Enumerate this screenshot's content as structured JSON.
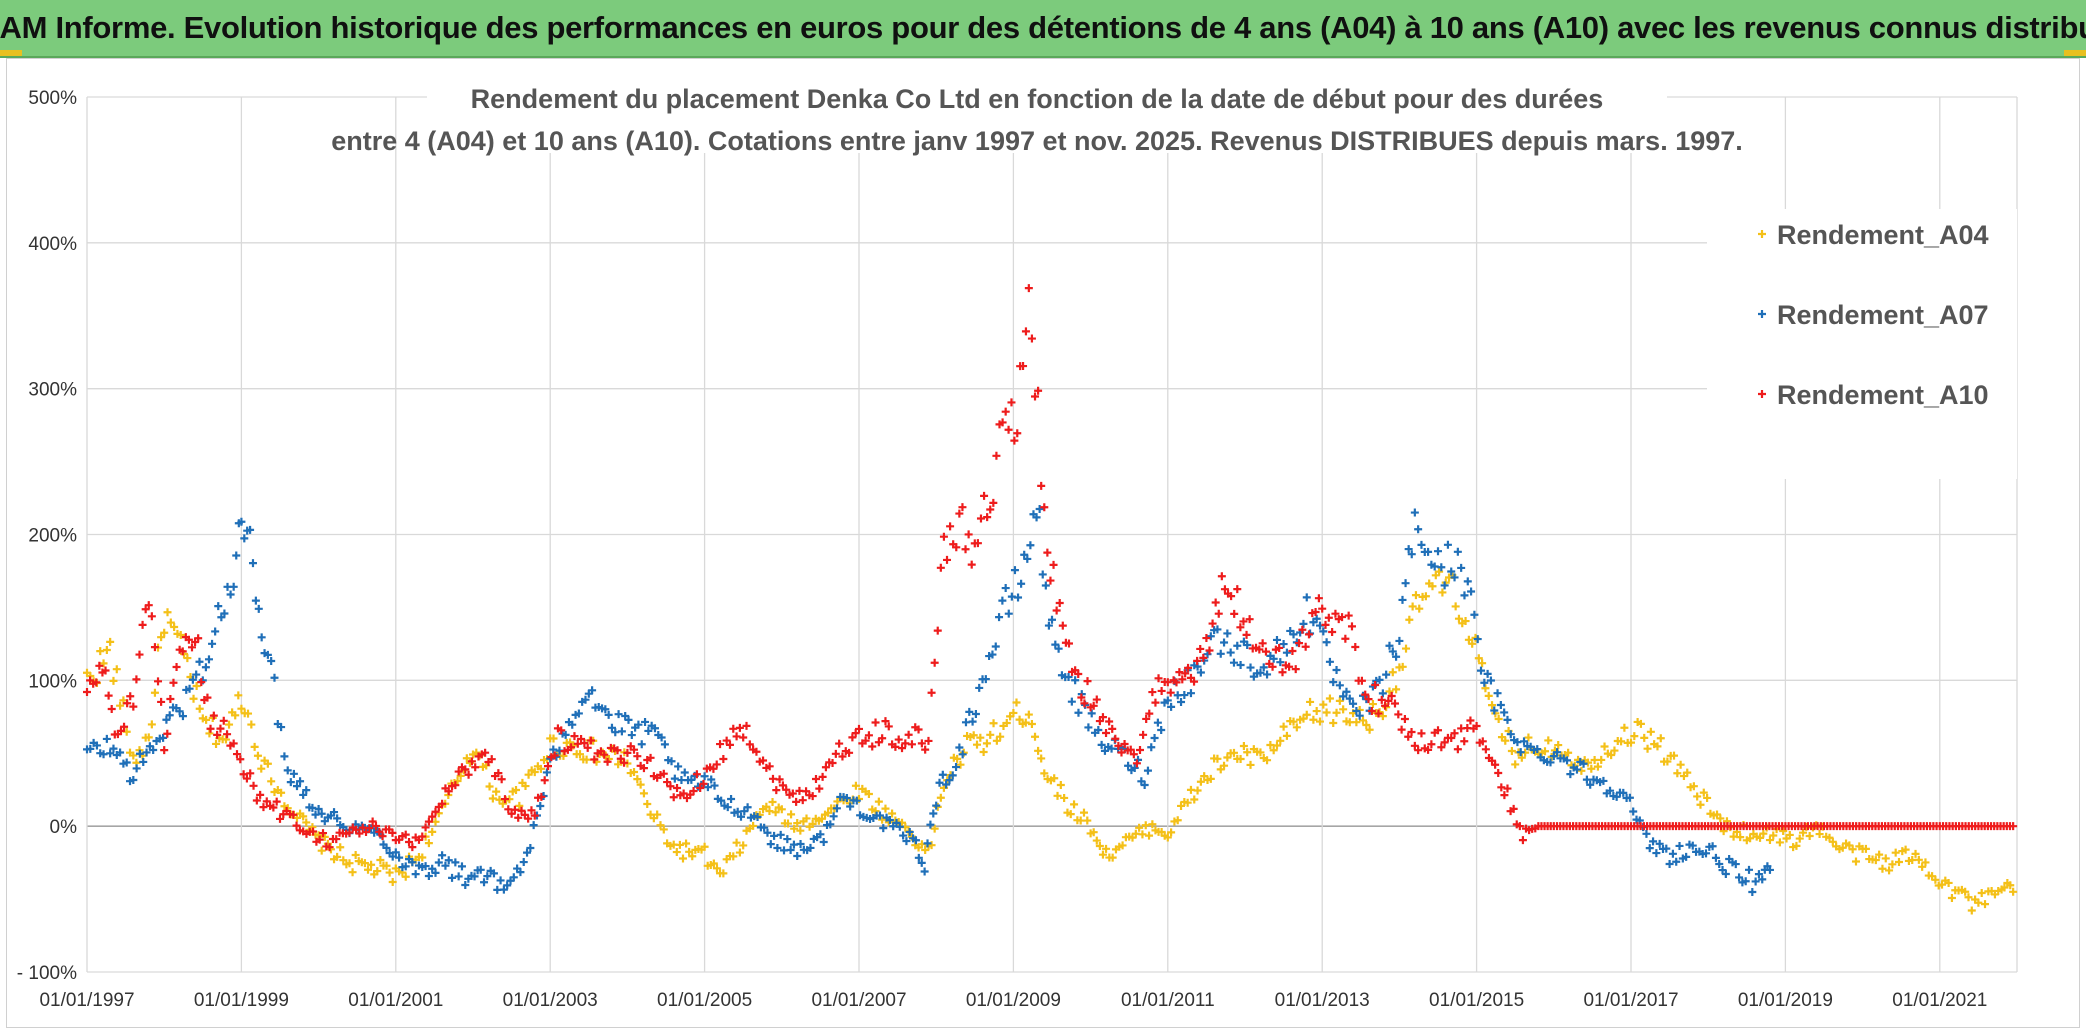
{
  "banner": {
    "title": "ADAM Informe. Evolution historique des performances en euros pour des détentions de 4 ans (A04) à 10 ans (A10) avec les revenus connus distribués"
  },
  "colors": {
    "banner_bg": "#7ccb7c",
    "A04": "#f4c018",
    "A07": "#1f6fb8",
    "A10": "#ee1c1c",
    "grid": "#d9d9d9"
  },
  "chart_data": {
    "type": "scatter",
    "title_line1": "Rendement du placement Denka Co Ltd en fonction de la date de début pour des durées",
    "title_line2": "entre 4 (A04) et 10 ans (A10). Cotations entre janv 1997 et nov. 2025. Revenus DISTRIBUES depuis mars. 1997.",
    "xlabel": "",
    "ylabel": "",
    "xlim": [
      1997.0,
      2022.0
    ],
    "ylim": [
      -100,
      500
    ],
    "y_ticks": [
      500,
      400,
      300,
      200,
      100,
      0,
      -100
    ],
    "y_tick_labels": [
      "500%",
      "400%",
      "300%",
      "200%",
      "100%",
      "0%",
      "- 100%"
    ],
    "x_ticks": [
      1997,
      1999,
      2001,
      2003,
      2005,
      2007,
      2009,
      2011,
      2013,
      2015,
      2017,
      2019,
      2021
    ],
    "x_tick_labels": [
      "01/01/1997",
      "01/01/1999",
      "01/01/2001",
      "01/01/2003",
      "01/01/2005",
      "01/01/2007",
      "01/01/2009",
      "01/01/2011",
      "01/01/2013",
      "01/01/2015",
      "01/01/2017",
      "01/01/2019",
      "01/01/2021"
    ],
    "legend_position": "top-right",
    "marker": "+",
    "series": [
      {
        "name": "Rendement_A04",
        "color": "#f4c018",
        "x": [
          1997.0,
          1997.3,
          1997.6,
          1997.8,
          1998.0,
          1998.3,
          1998.5,
          1998.8,
          1999.0,
          1999.3,
          1999.6,
          2000.0,
          2000.4,
          2000.8,
          2001.0,
          2001.3,
          2001.6,
          2002.0,
          2002.3,
          2002.6,
          2003.0,
          2003.3,
          2003.6,
          2004.0,
          2004.3,
          2004.6,
          2005.0,
          2005.2,
          2005.5,
          2005.8,
          2006.2,
          2006.6,
          2007.0,
          2007.3,
          2007.6,
          2007.9,
          2008.1,
          2008.4,
          2008.7,
          2009.0,
          2009.2,
          2009.4,
          2009.7,
          2010.0,
          2010.2,
          2010.5,
          2010.8,
          2011.0,
          2011.3,
          2011.6,
          2011.9,
          2012.2,
          2012.5,
          2012.8,
          2013.1,
          2013.4,
          2013.7,
          2014.0,
          2014.3,
          2014.6,
          2014.9,
          2015.2,
          2015.5,
          2015.8,
          2016.1,
          2016.4,
          2016.7,
          2017.0,
          2017.3,
          2017.6,
          2017.9,
          2018.2,
          2018.5,
          2018.8,
          2019.1,
          2019.4,
          2019.7,
          2020.0,
          2020.3,
          2020.6,
          2020.9,
          2021.2,
          2021.5,
          2021.8,
          2021.95
        ],
        "values": [
          100,
          120,
          45,
          60,
          145,
          110,
          70,
          60,
          90,
          40,
          15,
          -10,
          -25,
          -30,
          -35,
          -20,
          10,
          55,
          20,
          20,
          55,
          55,
          50,
          45,
          10,
          -15,
          -20,
          -35,
          -10,
          15,
          0,
          10,
          25,
          10,
          0,
          -20,
          30,
          55,
          60,
          75,
          80,
          40,
          15,
          0,
          -20,
          -10,
          0,
          -5,
          20,
          40,
          50,
          45,
          60,
          75,
          80,
          75,
          75,
          110,
          160,
          165,
          140,
          75,
          50,
          55,
          55,
          40,
          55,
          65,
          60,
          40,
          20,
          0,
          -5,
          -5,
          -10,
          0,
          -15,
          -20,
          -25,
          -20,
          -30,
          -45,
          -55,
          -45,
          -45
        ]
      },
      {
        "name": "Rendement_A07",
        "color": "#1f6fb8",
        "x": [
          1997.0,
          1997.3,
          1997.6,
          1997.9,
          1998.2,
          1998.5,
          1998.7,
          1998.9,
          1999.0,
          1999.15,
          1999.3,
          1999.6,
          2000.0,
          2000.4,
          2000.8,
          2001.0,
          2001.3,
          2001.6,
          2001.9,
          2002.1,
          2002.4,
          2002.7,
          2003.0,
          2003.2,
          2003.5,
          2003.8,
          2004.1,
          2004.4,
          2004.7,
          2005.0,
          2005.3,
          2005.6,
          2005.9,
          2006.2,
          2006.5,
          2006.8,
          2007.1,
          2007.4,
          2007.7,
          2007.85,
          2008.0,
          2008.3,
          2008.6,
          2008.9,
          2009.1,
          2009.3,
          2009.5,
          2009.8,
          2010.1,
          2010.4,
          2010.7,
          2011.0,
          2011.3,
          2011.6,
          2011.9,
          2012.2,
          2012.5,
          2012.8,
          2013.1,
          2013.4,
          2013.7,
          2014.0,
          2014.2,
          2014.5,
          2014.8,
          2015.1,
          2015.4,
          2015.7,
          2016.0,
          2016.3,
          2016.6,
          2016.9,
          2017.2,
          2017.5,
          2017.8,
          2018.1,
          2018.4,
          2018.7,
          2018.8
        ],
        "values": [
          50,
          55,
          35,
          60,
          80,
          110,
          140,
          170,
          210,
          180,
          130,
          40,
          10,
          0,
          -5,
          -20,
          -30,
          -25,
          -35,
          -30,
          -45,
          -20,
          40,
          70,
          95,
          70,
          65,
          60,
          30,
          30,
          15,
          10,
          -10,
          -15,
          -10,
          20,
          10,
          0,
          -10,
          -25,
          20,
          50,
          100,
          150,
          170,
          220,
          130,
          90,
          60,
          50,
          35,
          90,
          100,
          130,
          120,
          110,
          120,
          150,
          110,
          75,
          90,
          130,
          210,
          175,
          185,
          100,
          70,
          50,
          50,
          40,
          30,
          25,
          -10,
          -20,
          -15,
          -20,
          -35,
          -40,
          -30
        ]
      },
      {
        "name": "Rendement_A10",
        "color": "#ee1c1c",
        "x": [
          1997.0,
          1997.2,
          1997.4,
          1997.6,
          1997.8,
          1998.0,
          1998.2,
          1998.4,
          1998.6,
          1998.9,
          1999.2,
          1999.5,
          1999.8,
          2000.1,
          2000.4,
          2000.7,
          2001.0,
          2001.3,
          2001.6,
          2001.9,
          2002.2,
          2002.5,
          2002.8,
          2003.1,
          2003.4,
          2003.7,
          2004.0,
          2004.3,
          2004.6,
          2004.9,
          2005.2,
          2005.5,
          2005.8,
          2006.1,
          2006.4,
          2006.7,
          2007.0,
          2007.3,
          2007.6,
          2007.9,
          2008.1,
          2008.3,
          2008.5,
          2008.7,
          2008.9,
          2009.05,
          2009.2,
          2009.4,
          2009.6,
          2009.8,
          2010.0,
          2010.2,
          2010.4,
          2010.6,
          2010.8,
          2011.0,
          2011.15,
          2011.3,
          2011.5,
          2011.7,
          2011.9,
          2012.1,
          2012.4,
          2012.7,
          2013.0,
          2013.3,
          2013.6,
          2013.9,
          2014.2,
          2014.5,
          2014.8,
          2015.0,
          2015.2,
          2015.4,
          2015.6,
          2015.8,
          2016.0,
          2016.5,
          2017.0,
          2017.5,
          2018.0,
          2018.5,
          2019.0,
          2019.5,
          2020.0,
          2020.5,
          2021.0,
          2021.5,
          2021.95
        ],
        "values": [
          90,
          110,
          60,
          90,
          150,
          60,
          110,
          130,
          70,
          60,
          20,
          10,
          0,
          -10,
          -5,
          0,
          -10,
          -10,
          20,
          40,
          50,
          10,
          10,
          60,
          55,
          45,
          50,
          45,
          20,
          30,
          50,
          70,
          40,
          20,
          25,
          50,
          60,
          65,
          60,
          60,
          190,
          210,
          190,
          230,
          280,
          270,
          380,
          210,
          140,
          100,
          90,
          70,
          55,
          40,
          90,
          100,
          110,
          100,
          120,
          160,
          150,
          130,
          110,
          120,
          150,
          140,
          90,
          80,
          60,
          60,
          60,
          70,
          40,
          20,
          -5,
          0,
          0,
          0,
          0,
          0,
          0,
          0,
          0,
          0,
          0,
          0,
          0,
          0,
          0
        ]
      }
    ]
  }
}
